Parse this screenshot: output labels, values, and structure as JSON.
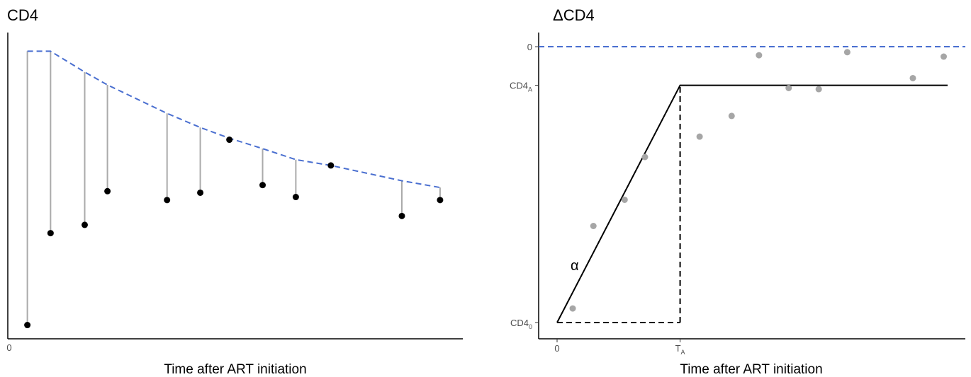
{
  "chart_data": [
    {
      "type": "scatter",
      "title": "CD4",
      "xlabel": "Time after ART initiation",
      "ylabel": "",
      "x_ticks": [
        "0"
      ],
      "xlim": [
        0,
        100
      ],
      "ylim": [
        0,
        100
      ],
      "grid": false,
      "points": [
        {
          "x": 4.3,
          "y": 4.5
        },
        {
          "x": 9.4,
          "y": 34.5
        },
        {
          "x": 16.9,
          "y": 37.2
        },
        {
          "x": 21.9,
          "y": 48.2
        },
        {
          "x": 35.0,
          "y": 45.3
        },
        {
          "x": 42.3,
          "y": 47.7
        },
        {
          "x": 48.7,
          "y": 65.0
        },
        {
          "x": 56.0,
          "y": 50.2
        },
        {
          "x": 63.3,
          "y": 46.3
        },
        {
          "x": 71.0,
          "y": 56.6
        },
        {
          "x": 86.6,
          "y": 40.1
        },
        {
          "x": 95.0,
          "y": 45.3
        }
      ],
      "reference_curve": {
        "style": "dashed",
        "color": "#4a6fd0",
        "points": [
          {
            "x": 4.3,
            "y": 93.9
          },
          {
            "x": 9.4,
            "y": 93.9
          },
          {
            "x": 16.9,
            "y": 87.1
          },
          {
            "x": 21.9,
            "y": 82.9
          },
          {
            "x": 35.0,
            "y": 73.6
          },
          {
            "x": 42.3,
            "y": 69.0
          },
          {
            "x": 48.7,
            "y": 65.5
          },
          {
            "x": 56.0,
            "y": 62.1
          },
          {
            "x": 63.3,
            "y": 58.5
          },
          {
            "x": 71.0,
            "y": 56.6
          },
          {
            "x": 86.6,
            "y": 51.6
          },
          {
            "x": 95.0,
            "y": 49.4
          }
        ]
      },
      "connector_color": "#aaaaaa",
      "point_color": "#000000"
    },
    {
      "type": "scatter",
      "title": "ΔCD4",
      "xlabel": "Time after ART initiation",
      "ylabel": "",
      "xlim": [
        0,
        100
      ],
      "ylim": [
        0,
        100
      ],
      "grid": false,
      "x_ticks": [
        {
          "x": 0,
          "label": "0",
          "sub": ""
        },
        {
          "x": 31.5,
          "label": "T",
          "sub": "A"
        }
      ],
      "y_ticks": [
        {
          "y": 100,
          "label": "0",
          "sub": ""
        },
        {
          "y": 86,
          "label": "CD4",
          "sub": "A"
        },
        {
          "y": 0,
          "label": "CD4",
          "sub": "0"
        }
      ],
      "zero_line": {
        "y": 100,
        "style": "dashed",
        "color": "#4a6fd0"
      },
      "segmented_fit": [
        {
          "x": 0,
          "y": 0
        },
        {
          "x": 31.5,
          "y": 86
        },
        {
          "x": 100,
          "y": 86
        }
      ],
      "change_point_guides": {
        "style": "dashed",
        "lines": [
          {
            "from": {
              "x": 0,
              "y": 0
            },
            "to": {
              "x": 31.5,
              "y": 0
            }
          },
          {
            "from": {
              "x": 31.5,
              "y": 0
            },
            "to": {
              "x": 31.5,
              "y": 86
            }
          }
        ]
      },
      "annotations": [
        {
          "text": "α",
          "x": 4.5,
          "y": 19
        }
      ],
      "points": [
        {
          "x": 4.0,
          "y": 5.1
        },
        {
          "x": 9.3,
          "y": 35.0
        },
        {
          "x": 17.3,
          "y": 44.5
        },
        {
          "x": 22.5,
          "y": 60.0
        },
        {
          "x": 36.5,
          "y": 67.4
        },
        {
          "x": 44.7,
          "y": 74.9
        },
        {
          "x": 51.7,
          "y": 96.9
        },
        {
          "x": 59.3,
          "y": 85.0
        },
        {
          "x": 67.0,
          "y": 84.6
        },
        {
          "x": 74.3,
          "y": 98.0
        },
        {
          "x": 91.1,
          "y": 88.6
        },
        {
          "x": 99.0,
          "y": 96.4
        }
      ],
      "point_color": "#a6a6a6"
    }
  ]
}
